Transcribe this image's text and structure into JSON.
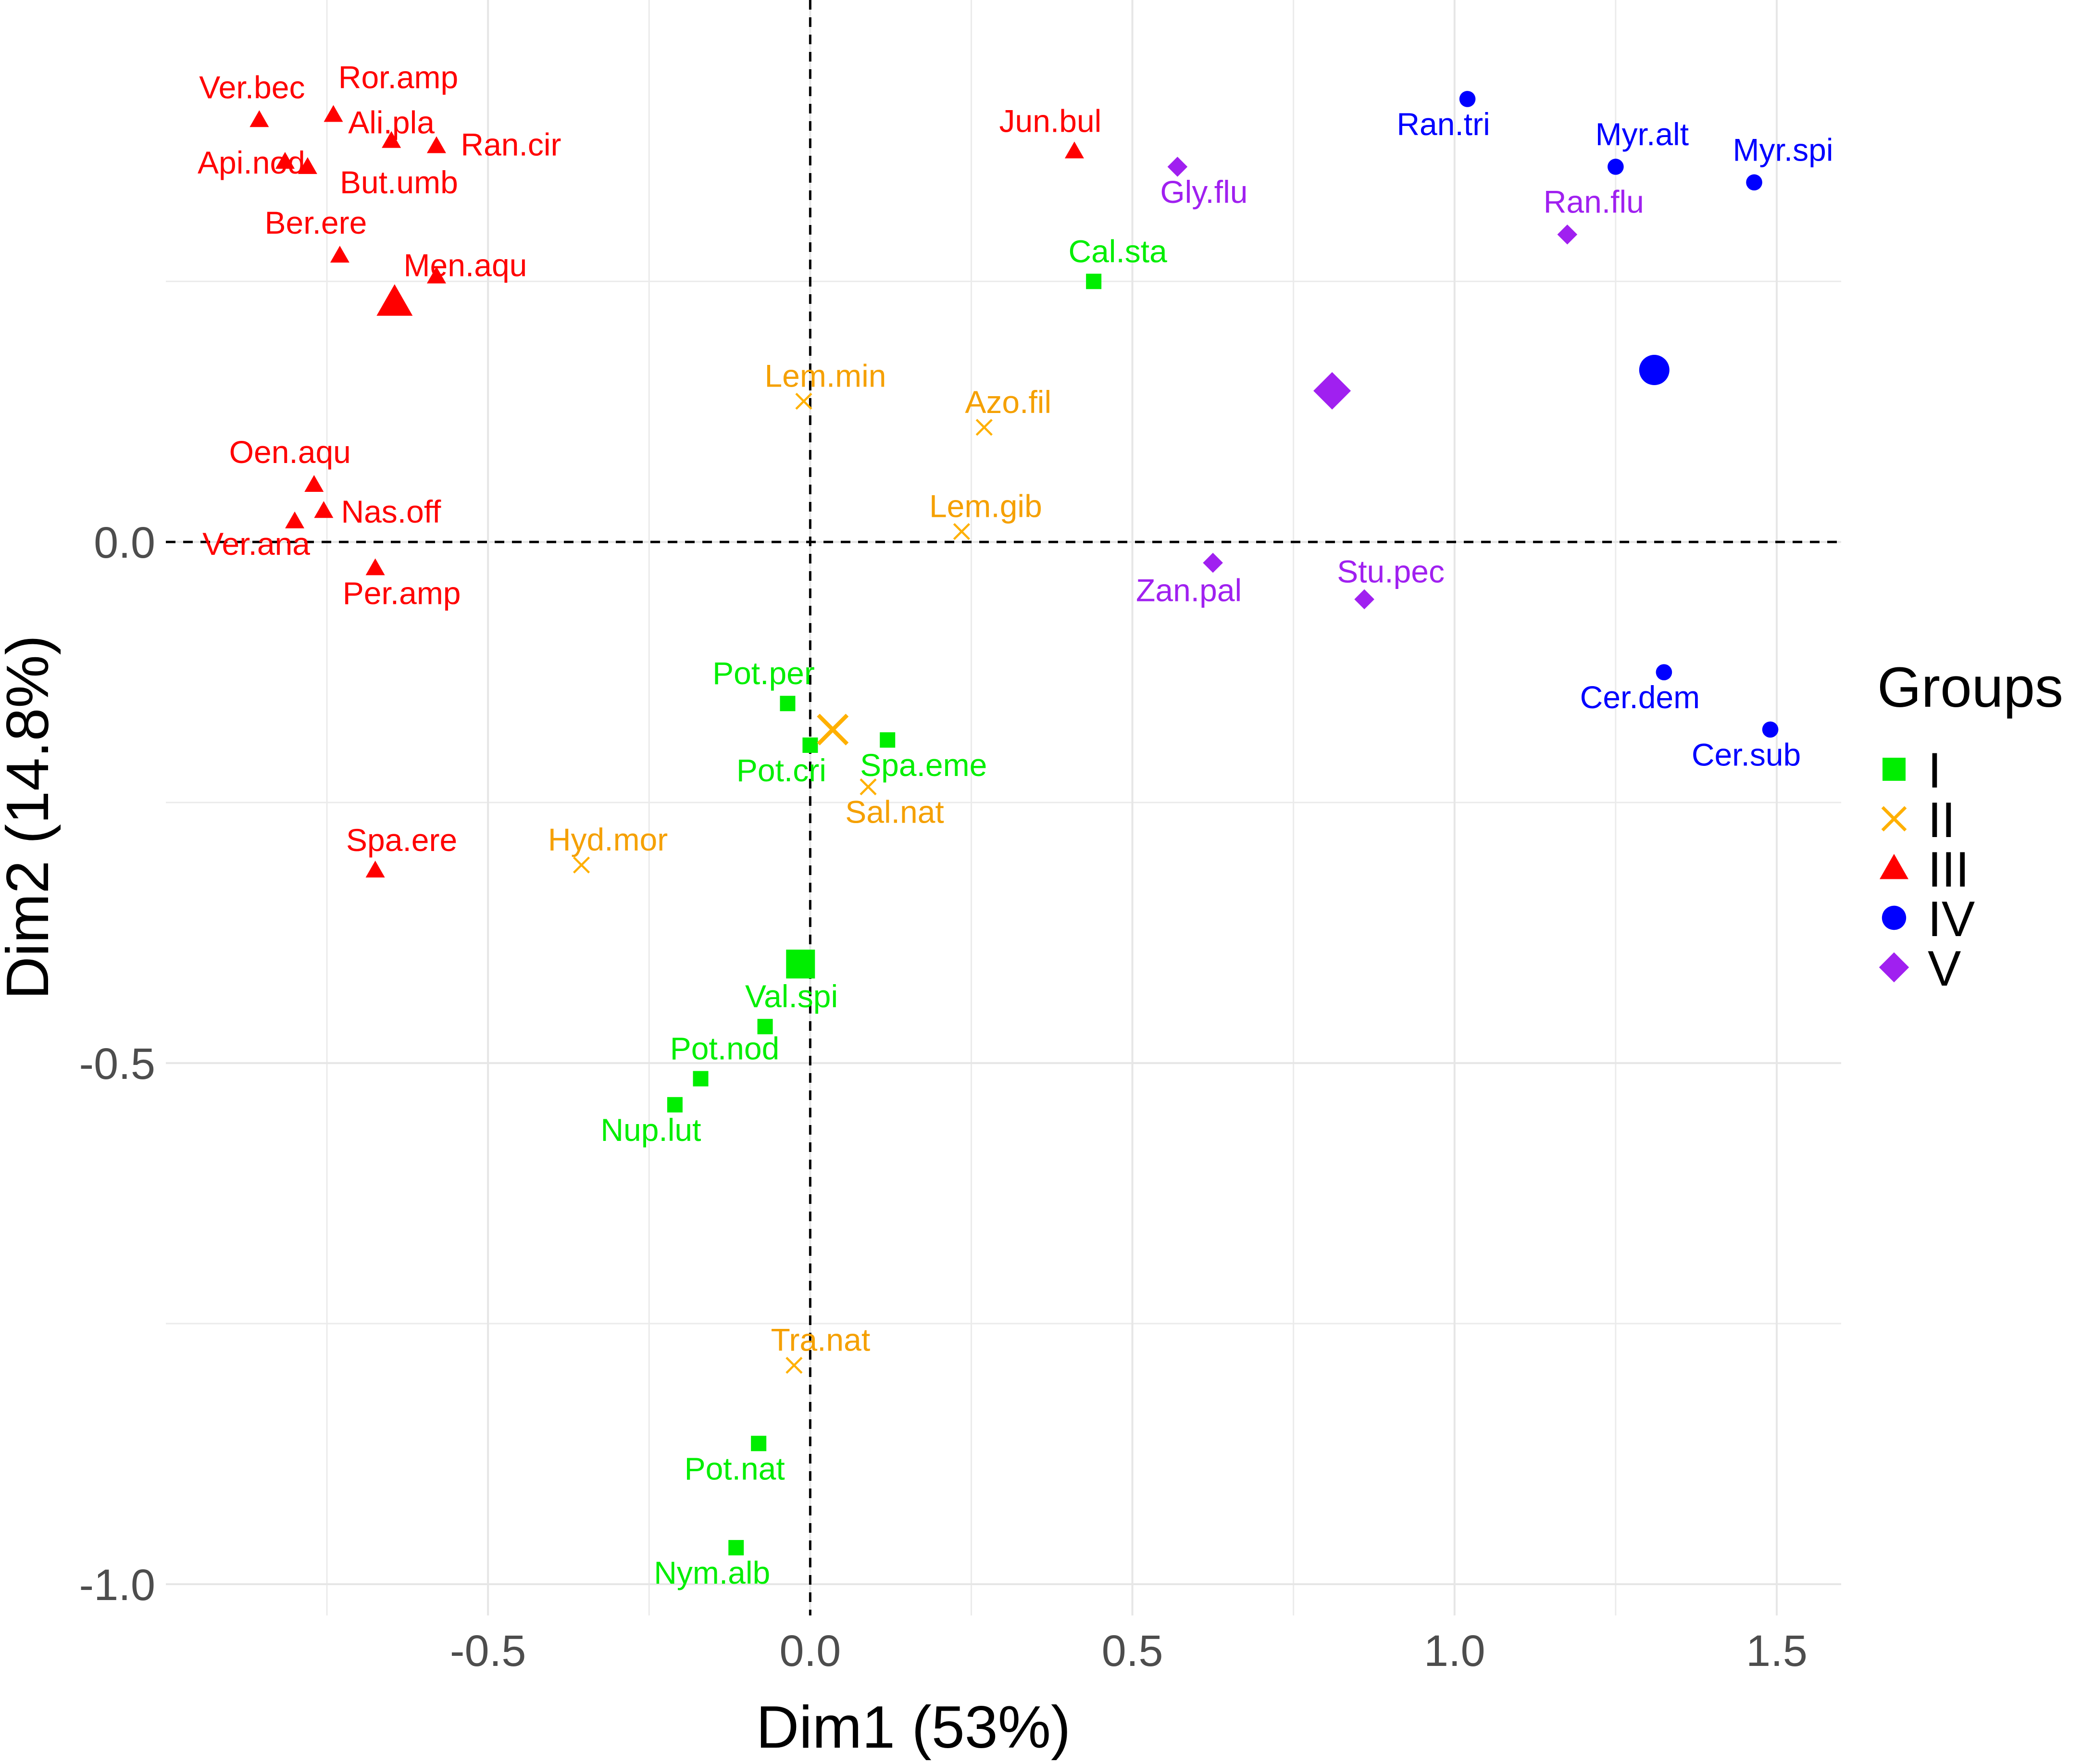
{
  "chart_data": {
    "type": "scatter",
    "xlabel": "Dim1 (53%)",
    "ylabel": "Dim2 (14.8%)",
    "xlim": [
      -1.0,
      1.6
    ],
    "ylim": [
      -1.03,
      0.52
    ],
    "x_ticks": [
      -0.5,
      0.0,
      0.5,
      1.0,
      1.5
    ],
    "x_tick_labels": [
      "-0.5",
      "0.0",
      "0.5",
      "1.0",
      "1.5"
    ],
    "y_ticks": [
      -1.0,
      -0.5,
      0.0
    ],
    "y_tick_labels": [
      "-1.0",
      "-0.5",
      "0.0"
    ],
    "grid": true,
    "reference_lines": {
      "x": 0,
      "y": 0
    },
    "legend": {
      "title": "Groups",
      "position": "right",
      "entries": [
        {
          "label": "I",
          "shape": "square",
          "color": "#00ee00"
        },
        {
          "label": "II",
          "shape": "cross",
          "color": "#ffb000"
        },
        {
          "label": "III",
          "shape": "triangle",
          "color": "#ff0000"
        },
        {
          "label": "IV",
          "shape": "circle",
          "color": "#0000ff"
        },
        {
          "label": "V",
          "shape": "diamond",
          "color": "#a020f0"
        }
      ]
    },
    "series": [
      {
        "name": "I",
        "shape": "square",
        "color": "#00ee00",
        "label_color": "#00ee00",
        "points": [
          {
            "label": "Cal.sta",
            "x": 0.44,
            "y": 0.25
          },
          {
            "label": "Pot.per",
            "x": -0.035,
            "y": -0.155
          },
          {
            "label": "Pot.cri",
            "x": 0.0,
            "y": -0.195
          },
          {
            "label": "Spa.eme",
            "x": 0.12,
            "y": -0.19
          },
          {
            "label": "Val.spi",
            "x": -0.07,
            "y": -0.465
          },
          {
            "label": "Pot.nod",
            "x": -0.17,
            "y": -0.515
          },
          {
            "label": "Nup.lut",
            "x": -0.21,
            "y": -0.54
          },
          {
            "label": "Pot.nat",
            "x": -0.08,
            "y": -0.865
          },
          {
            "label": "Nym.alb",
            "x": -0.115,
            "y": -0.965
          }
        ],
        "centroid": {
          "x": -0.015,
          "y": -0.405
        }
      },
      {
        "name": "II",
        "shape": "cross",
        "color": "#ffb000",
        "label_color": "#f5a000",
        "points": [
          {
            "label": "Lem.min",
            "x": -0.01,
            "y": 0.135
          },
          {
            "label": "Azo.fil",
            "x": 0.27,
            "y": 0.11
          },
          {
            "label": "Lem.gib",
            "x": 0.235,
            "y": 0.01
          },
          {
            "label": "Sal.nat",
            "x": 0.09,
            "y": -0.235
          },
          {
            "label": "Hyd.mor",
            "x": -0.355,
            "y": -0.31
          },
          {
            "label": "Tra.nat",
            "x": -0.025,
            "y": -0.79
          }
        ],
        "centroid": {
          "x": 0.035,
          "y": -0.18
        }
      },
      {
        "name": "III",
        "shape": "triangle",
        "color": "#ff0000",
        "label_color": "#ff0000",
        "points": [
          {
            "label": "Ver.bec",
            "x": -0.855,
            "y": 0.405
          },
          {
            "label": "Ror.amp",
            "x": -0.74,
            "y": 0.41
          },
          {
            "label": "Ali.pla",
            "x": -0.65,
            "y": 0.385
          },
          {
            "label": "Ran.cir",
            "x": -0.58,
            "y": 0.38
          },
          {
            "label": "Api.nod",
            "x": -0.815,
            "y": 0.365
          },
          {
            "label": "But.umb",
            "x": -0.78,
            "y": 0.36
          },
          {
            "label": "Jun.bul",
            "x": 0.41,
            "y": 0.375
          },
          {
            "label": "Ber.ere",
            "x": -0.73,
            "y": 0.275
          },
          {
            "label": "Men.aqu",
            "x": -0.58,
            "y": 0.255
          },
          {
            "label": "Oen.aqu",
            "x": -0.77,
            "y": 0.055
          },
          {
            "label": "Nas.off",
            "x": -0.755,
            "y": 0.03
          },
          {
            "label": "Ver.ana",
            "x": -0.8,
            "y": 0.02
          },
          {
            "label": "Per.amp",
            "x": -0.675,
            "y": -0.025
          },
          {
            "label": "Spa.ere",
            "x": -0.675,
            "y": -0.315
          }
        ],
        "centroid": {
          "x": -0.645,
          "y": 0.23
        }
      },
      {
        "name": "IV",
        "shape": "circle",
        "color": "#0000ff",
        "label_color": "#0000ff",
        "points": [
          {
            "label": "Ran.tri",
            "x": 1.02,
            "y": 0.425
          },
          {
            "label": "Myr.alt",
            "x": 1.25,
            "y": 0.36
          },
          {
            "label": "Myr.spi",
            "x": 1.465,
            "y": 0.345
          },
          {
            "label": "Cer.dem",
            "x": 1.325,
            "y": -0.125
          },
          {
            "label": "Cer.sub",
            "x": 1.49,
            "y": -0.18
          }
        ],
        "centroid": {
          "x": 1.31,
          "y": 0.165
        }
      },
      {
        "name": "V",
        "shape": "diamond",
        "color": "#a020f0",
        "label_color": "#a020f0",
        "points": [
          {
            "label": "Gly.flu",
            "x": 0.57,
            "y": 0.36
          },
          {
            "label": "Ran.flu",
            "x": 1.175,
            "y": 0.295
          },
          {
            "label": "Zan.pal",
            "x": 0.625,
            "y": -0.02
          },
          {
            "label": "Stu.pec",
            "x": 0.86,
            "y": -0.055
          }
        ],
        "centroid": {
          "x": 0.81,
          "y": 0.145
        }
      }
    ]
  }
}
